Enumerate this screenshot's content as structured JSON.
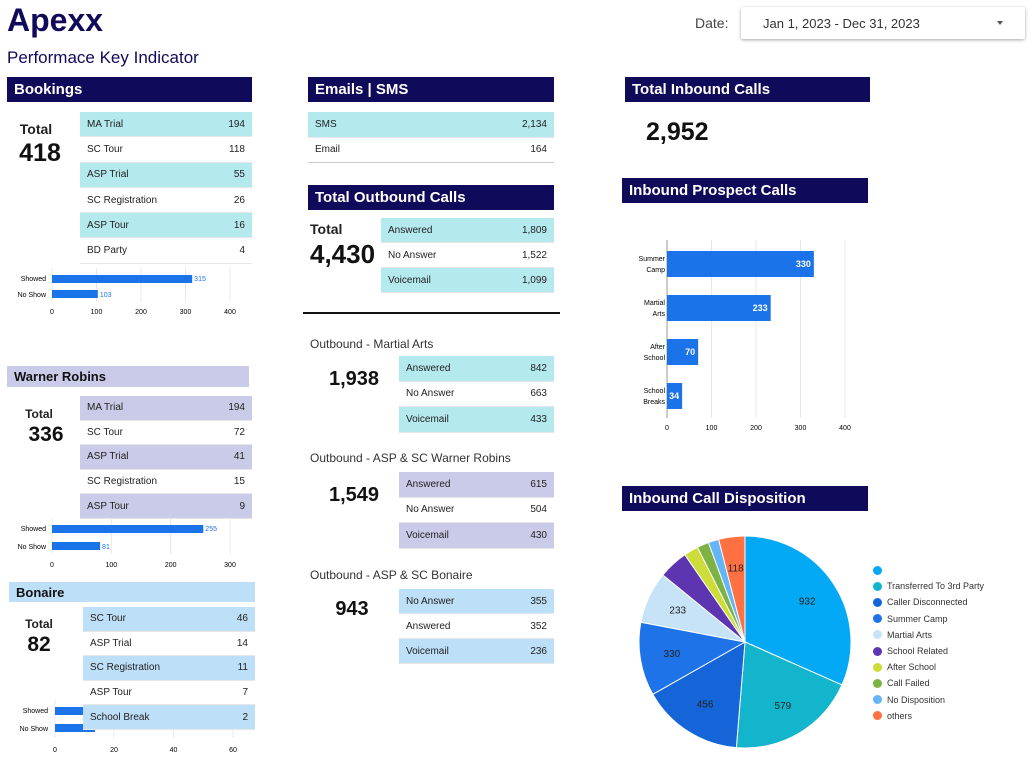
{
  "header": {
    "brand": "Apexx",
    "subtitle": "Performace Key Indicator",
    "date_label": "Date:",
    "date_value": "Jan 1, 2023 - Dec 31, 2023"
  },
  "bookings": {
    "title": "Bookings",
    "total_label": "Total",
    "total_value": "418",
    "rows": [
      {
        "label": "MA Trial",
        "value": "194"
      },
      {
        "label": "SC Tour",
        "value": "118"
      },
      {
        "label": "ASP Trial",
        "value": "55"
      },
      {
        "label": "SC Registration",
        "value": "26"
      },
      {
        "label": "ASP Tour",
        "value": "16"
      },
      {
        "label": "BD Party",
        "value": "4"
      }
    ],
    "bars": {
      "categories": [
        "Showed",
        "No Show"
      ],
      "values": [
        315,
        103
      ],
      "xticks": [
        "0",
        "100",
        "200",
        "300",
        "400"
      ],
      "xmax": 400
    }
  },
  "warner": {
    "title": "Warner Robins",
    "total_label": "Total",
    "total_value": "336",
    "rows": [
      {
        "label": "MA Trial",
        "value": "194"
      },
      {
        "label": "SC Tour",
        "value": "72"
      },
      {
        "label": "ASP Trial",
        "value": "41"
      },
      {
        "label": "SC Registration",
        "value": "15"
      },
      {
        "label": "ASP Tour",
        "value": "9"
      }
    ],
    "bars": {
      "categories": [
        "Showed",
        "No Show"
      ],
      "values": [
        255,
        81
      ],
      "xticks": [
        "0",
        "100",
        "200",
        "300"
      ],
      "xmax": 300
    }
  },
  "bonaire": {
    "title": "Bonaire",
    "total_label": "Total",
    "total_value": "82",
    "rows": [
      {
        "label": "SC Tour",
        "value": "46"
      },
      {
        "label": "ASP Trial",
        "value": "14"
      },
      {
        "label": "SC Registration",
        "value": "11"
      },
      {
        "label": "ASP Tour",
        "value": "7"
      },
      {
        "label": "School Break",
        "value": "2"
      }
    ],
    "bars": {
      "categories": [
        "Showed",
        "No Show"
      ],
      "values": [
        "",
        ""
      ],
      "xticks": [
        "0",
        "20",
        "40",
        "60"
      ]
    }
  },
  "emails": {
    "title": "Emails | SMS",
    "rows": [
      {
        "label": "SMS",
        "value": "2,134"
      },
      {
        "label": "Email",
        "value": "164"
      }
    ]
  },
  "outbound": {
    "title": "Total Outbound Calls",
    "total_label": "Total",
    "total_value": "4,430",
    "rows": [
      {
        "label": "Answered",
        "value": "1,809"
      },
      {
        "label": "No Answer",
        "value": "1,522"
      },
      {
        "label": "Voicemail",
        "value": "1,099"
      }
    ]
  },
  "ob_martial": {
    "title": "Outbound - Martial Arts",
    "total_value": "1,938",
    "rows": [
      {
        "label": "Answered",
        "value": "842"
      },
      {
        "label": "No Answer",
        "value": "663"
      },
      {
        "label": "Voicemail",
        "value": "433"
      }
    ]
  },
  "ob_warner": {
    "title": "Outbound - ASP & SC Warner Robins",
    "total_value": "1,549",
    "rows": [
      {
        "label": "Answered",
        "value": "615"
      },
      {
        "label": "No Answer",
        "value": "504"
      },
      {
        "label": "Voicemail",
        "value": "430"
      }
    ]
  },
  "ob_bonaire": {
    "title": "Outbound - ASP & SC Bonaire",
    "total_value": "943",
    "rows": [
      {
        "label": "No Answer",
        "value": "355"
      },
      {
        "label": "Answered",
        "value": "352"
      },
      {
        "label": "Voicemail",
        "value": "236"
      }
    ]
  },
  "inbound": {
    "title": "Total Inbound Calls",
    "value": "2,952"
  },
  "prospect": {
    "title": "Inbound Prospect Calls"
  },
  "disposition": {
    "title": "Inbound Call Disposition"
  },
  "colors": {
    "navy": "#0f0a59",
    "cyan_row": "#b4e9ee",
    "lavender_row": "#c9cbe8",
    "blue_row": "#bddff8",
    "bar": "#1a73e8"
  },
  "chart_data": [
    {
      "type": "bar",
      "orientation": "horizontal",
      "title": "Inbound Prospect Calls",
      "categories": [
        "Summer Camp",
        "Martial Arts",
        "After School",
        "School Breaks"
      ],
      "category_lines": [
        [
          "Summer",
          "Camp"
        ],
        [
          "Martial",
          "Arts"
        ],
        [
          "After",
          "School"
        ],
        [
          "School",
          "Breaks"
        ]
      ],
      "values": [
        330,
        233,
        70,
        34
      ],
      "xticks": [
        "0",
        "100",
        "200",
        "300",
        "400"
      ],
      "xlim": [
        0,
        400
      ],
      "grid": true,
      "color": "#1a73e8"
    },
    {
      "type": "pie",
      "title": "Inbound Call Disposition",
      "slices": [
        {
          "label": "",
          "value": 932,
          "color": "#03a9f4"
        },
        {
          "label": "Transferred To 3rd Party",
          "value": 579,
          "color": "#12b5cb"
        },
        {
          "label": "Caller Disconnected",
          "value": 456,
          "color": "#1565d8"
        },
        {
          "label": "Summer Camp",
          "value": 330,
          "color": "#1e73e8"
        },
        {
          "label": "Martial Arts",
          "value": 233,
          "color": "#c6e3f7"
        },
        {
          "label": "School Related",
          "value": null,
          "color": "#5e35b1"
        },
        {
          "label": "After School",
          "value": null,
          "color": "#cddc39"
        },
        {
          "label": "Call Failed",
          "value": null,
          "color": "#7cb342"
        },
        {
          "label": "No Disposition",
          "value": null,
          "color": "#64b5f6"
        },
        {
          "label": "others",
          "value": 118,
          "color": "#ff7043"
        }
      ],
      "unlabeled_share": [
        0.045,
        0.022,
        0.018,
        0.016
      ],
      "legend": "right"
    }
  ]
}
